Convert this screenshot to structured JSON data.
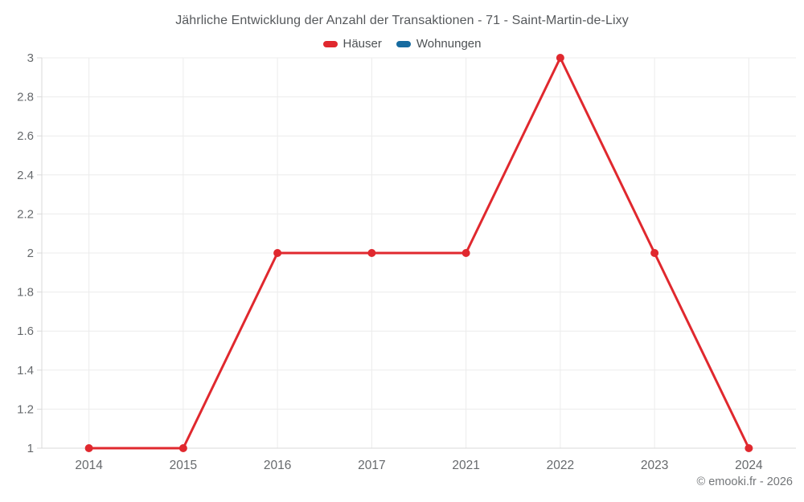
{
  "title": "Jährliche Entwicklung der Anzahl der Transaktionen - 71 - Saint-Martin-de-Lixy",
  "legend": {
    "items": [
      {
        "label": "Häuser",
        "color": "#e0282e"
      },
      {
        "label": "Wohnungen",
        "color": "#176ba0"
      }
    ]
  },
  "copyright": "© emooki.fr - 2026",
  "colors": {
    "series_red": "#e0282e",
    "series_blue": "#176ba0",
    "gridline": "#ececec",
    "axis_line": "#d9d9d9",
    "tick_label": "#66696c",
    "title_text": "#56595c",
    "background": "#ffffff"
  },
  "chart_data": {
    "type": "line",
    "categories": [
      "2014",
      "2015",
      "2016",
      "2017",
      "2021",
      "2022",
      "2023",
      "2024"
    ],
    "series": [
      {
        "name": "Häuser",
        "color": "#e0282e",
        "values": [
          1,
          1,
          2,
          2,
          2,
          3,
          2,
          1
        ]
      },
      {
        "name": "Wohnungen",
        "color": "#176ba0",
        "values": []
      }
    ],
    "title": "Jährliche Entwicklung der Anzahl der Transaktionen - 71 - Saint-Martin-de-Lixy",
    "xlabel": "",
    "ylabel": "",
    "ylim": [
      1,
      3
    ],
    "yticks": [
      1,
      1.2,
      1.4,
      1.6,
      1.8,
      2,
      2.2,
      2.4,
      2.6,
      2.8,
      3
    ],
    "grid": true,
    "legend_position": "top",
    "marker": "circle",
    "marker_radius": 5,
    "line_width": 3
  }
}
